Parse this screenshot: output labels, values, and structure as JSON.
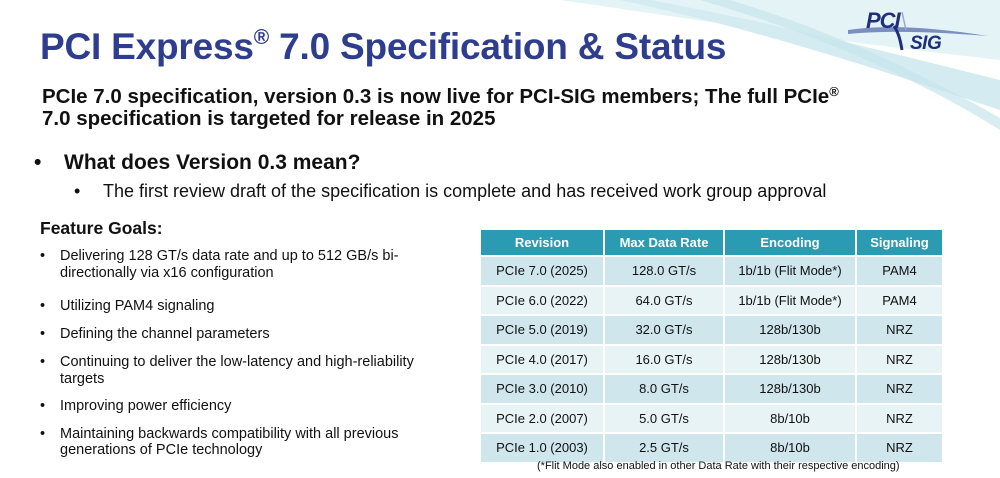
{
  "slide": {
    "title": "PCI Express",
    "title_reg": "®",
    "title_rest": " 7.0 Specification & Status",
    "subtitle_part1": "PCIe 7.0 specification, version 0.3 is now live for PCI-SIG members; The full PCIe",
    "subtitle_reg": "®",
    "subtitle_part2": " 7.0 specification is targeted for release in 2025",
    "question_bullet": "•",
    "question": "What does Version 0.3 mean?",
    "sub_bullet": "•",
    "sub_point": "The first review draft of the specification is complete and has received work group approval",
    "feature_goals_title": "Feature Goals:",
    "feature_goals": [
      "Delivering 128 GT/s data rate and up to 512 GB/s bi-directionally via x16 configuration",
      "Utilizing PAM4 signaling",
      "Defining the channel parameters",
      "Continuing to deliver the low-latency and high-reliability targets",
      "Improving power efficiency",
      "Maintaining backwards compatibility with all previous generations of PCIe technology"
    ],
    "goal_bullet": "•",
    "footnote": "(*Flit Mode also enabled in other Data Rate with their respective encoding)"
  },
  "logo": {
    "line1": "PCI",
    "line2": "SIG",
    "color": "#1f2f7a"
  },
  "table": {
    "headers": [
      "Revision",
      "Max Data Rate",
      "Encoding",
      "Signaling"
    ],
    "rows": [
      [
        "PCIe 7.0 (2025)",
        "128.0 GT/s",
        "1b/1b (Flit Mode*)",
        "PAM4"
      ],
      [
        "PCIe 6.0 (2022)",
        "64.0 GT/s",
        "1b/1b (Flit Mode*)",
        "PAM4"
      ],
      [
        "PCIe 5.0 (2019)",
        "32.0 GT/s",
        "128b/130b",
        "NRZ"
      ],
      [
        "PCIe 4.0 (2017)",
        "16.0 GT/s",
        "128b/130b",
        "NRZ"
      ],
      [
        "PCIe 3.0 (2010)",
        "8.0 GT/s",
        "128b/130b",
        "NRZ"
      ],
      [
        "PCIe 2.0 (2007)",
        "5.0 GT/s",
        "8b/10b",
        "NRZ"
      ],
      [
        "PCIe 1.0 (2003)",
        "2.5 GT/s",
        "8b/10b",
        "NRZ"
      ]
    ],
    "header_color": "#2b9bb4",
    "row_color_a": "#cfe6ec",
    "row_color_b": "#e8f3f6"
  },
  "colors": {
    "title": "#2e3d8e",
    "wave": "#dceff3"
  }
}
